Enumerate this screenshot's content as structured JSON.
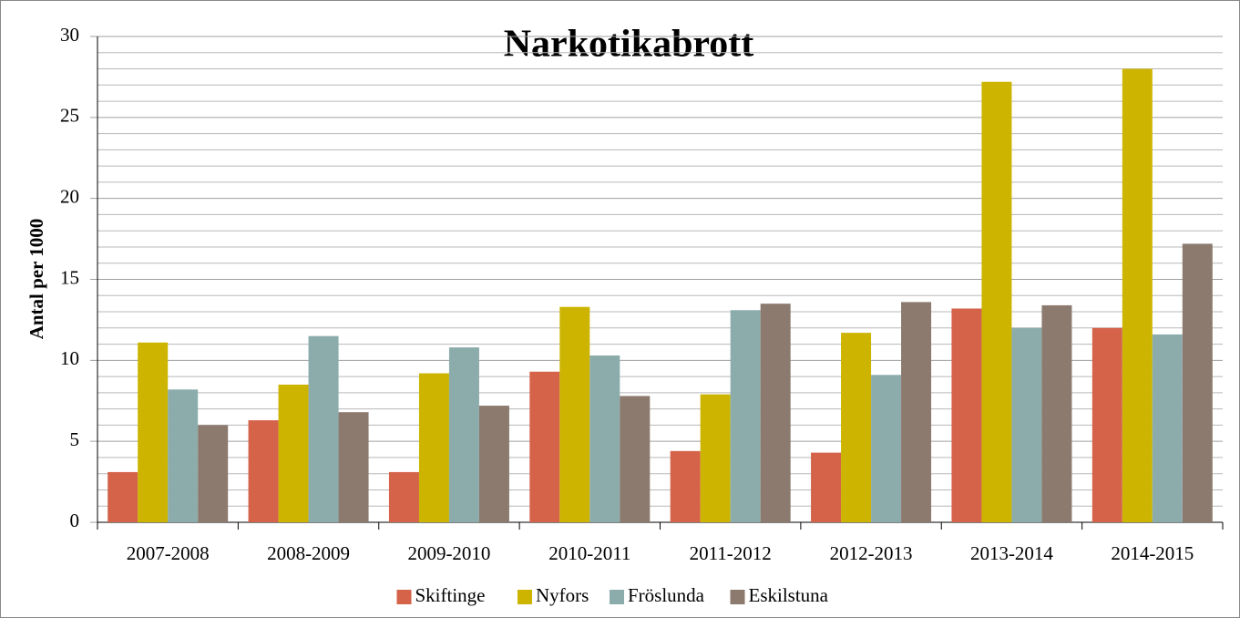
{
  "chart_data": {
    "type": "bar",
    "title": "Narkotikabrott",
    "y_label": "Antal per 1000",
    "categories": [
      "2007-2008",
      "2008-2009",
      "2009-2010",
      "2010-2011",
      "2011-2012",
      "2012-2013",
      "2013-2014",
      "2014-2015"
    ],
    "series": [
      {
        "name": "Skiftinge",
        "color": "#d4634a",
        "values": [
          3.1,
          6.3,
          3.1,
          9.3,
          4.4,
          4.3,
          13.2,
          12.0
        ]
      },
      {
        "name": "Nyfors",
        "color": "#ccb400",
        "values": [
          11.1,
          8.5,
          9.2,
          13.3,
          7.9,
          11.7,
          27.2,
          28.0
        ]
      },
      {
        "name": "Fröslunda",
        "color": "#8cacac",
        "values": [
          8.2,
          11.5,
          10.8,
          10.3,
          13.1,
          9.1,
          12.0,
          11.6
        ]
      },
      {
        "name": "Eskilstuna",
        "color": "#8c7a6e",
        "values": [
          6.0,
          6.8,
          7.2,
          7.8,
          13.5,
          13.6,
          13.4,
          17.2
        ]
      }
    ],
    "ylim": [
      0,
      30
    ],
    "yticks": [
      0,
      5,
      10,
      15,
      20,
      25,
      30
    ],
    "yminorticks": [
      1,
      2,
      3,
      4,
      6,
      7,
      8,
      9,
      11,
      12,
      13,
      14,
      16,
      17,
      18,
      19,
      21,
      22,
      23,
      24,
      26,
      27,
      28,
      29
    ],
    "grid": true,
    "legend": "bottom"
  }
}
